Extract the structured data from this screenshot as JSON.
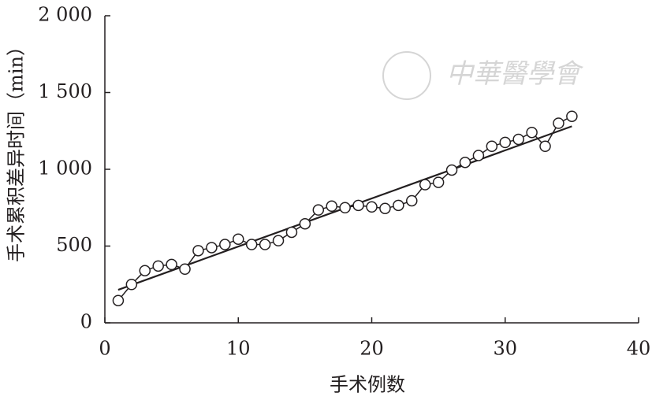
{
  "chart_data": {
    "type": "line",
    "xlabel": "手术例数",
    "ylabel": "手术累积差异时间（min）",
    "watermark": "中華醫學會",
    "x": [
      1,
      2,
      3,
      4,
      5,
      6,
      7,
      8,
      9,
      10,
      11,
      12,
      13,
      14,
      15,
      16,
      17,
      18,
      19,
      20,
      21,
      22,
      23,
      24,
      25,
      26,
      27,
      28,
      29,
      30,
      31,
      32,
      33,
      34,
      35
    ],
    "series": [
      {
        "color": "#231f20",
        "values": [
          145,
          250,
          340,
          370,
          380,
          350,
          470,
          490,
          510,
          545,
          510,
          510,
          535,
          590,
          645,
          735,
          760,
          750,
          765,
          755,
          745,
          765,
          795,
          900,
          915,
          995,
          1045,
          1090,
          1150,
          1175,
          1195,
          1240,
          1150,
          1300,
          1345
        ]
      }
    ],
    "trend": {
      "x": [
        1,
        35
      ],
      "values": [
        215,
        1280
      ],
      "color": "#231f20"
    },
    "xlim": [
      0,
      40
    ],
    "xticks": [
      0,
      10,
      20,
      30,
      40
    ],
    "ylim": [
      0,
      2000
    ],
    "yticks": [
      0,
      500,
      {
        "value": 1000,
        "label": "1 000"
      },
      {
        "value": 1500,
        "label": "1 500"
      },
      {
        "value": 2000,
        "label": "2 000"
      }
    ]
  }
}
